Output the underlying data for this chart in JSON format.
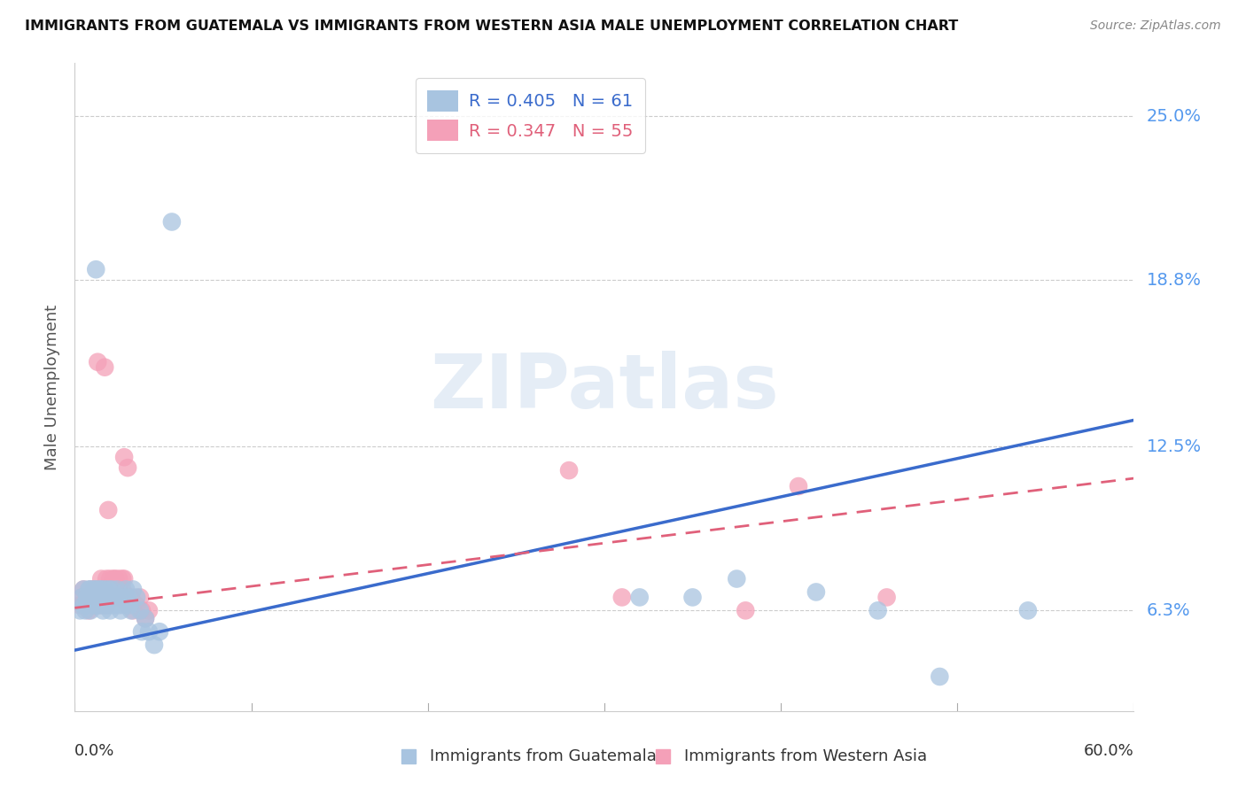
{
  "title": "IMMIGRANTS FROM GUATEMALA VS IMMIGRANTS FROM WESTERN ASIA MALE UNEMPLOYMENT CORRELATION CHART",
  "source": "Source: ZipAtlas.com",
  "ylabel": "Male Unemployment",
  "ytick_labels": [
    "6.3%",
    "12.5%",
    "18.8%",
    "25.0%"
  ],
  "ytick_values": [
    0.063,
    0.125,
    0.188,
    0.25
  ],
  "xlim": [
    0.0,
    0.6
  ],
  "ylim": [
    0.025,
    0.27
  ],
  "watermark": "ZIPatlas",
  "guatemala": {
    "R": 0.405,
    "N": 61,
    "scatter_color": "#a8c4e0",
    "line_color": "#3a6bcc",
    "trend_x": [
      0.0,
      0.6
    ],
    "trend_y": [
      0.048,
      0.135
    ],
    "points": [
      [
        0.003,
        0.063
      ],
      [
        0.004,
        0.068
      ],
      [
        0.005,
        0.065
      ],
      [
        0.005,
        0.071
      ],
      [
        0.006,
        0.063
      ],
      [
        0.007,
        0.068
      ],
      [
        0.007,
        0.065
      ],
      [
        0.008,
        0.071
      ],
      [
        0.008,
        0.068
      ],
      [
        0.009,
        0.063
      ],
      [
        0.009,
        0.071
      ],
      [
        0.01,
        0.068
      ],
      [
        0.01,
        0.065
      ],
      [
        0.011,
        0.071
      ],
      [
        0.011,
        0.068
      ],
      [
        0.012,
        0.065
      ],
      [
        0.012,
        0.071
      ],
      [
        0.013,
        0.068
      ],
      [
        0.013,
        0.065
      ],
      [
        0.014,
        0.071
      ],
      [
        0.014,
        0.068
      ],
      [
        0.015,
        0.065
      ],
      [
        0.015,
        0.071
      ],
      [
        0.016,
        0.068
      ],
      [
        0.016,
        0.063
      ],
      [
        0.017,
        0.071
      ],
      [
        0.017,
        0.065
      ],
      [
        0.018,
        0.068
      ],
      [
        0.019,
        0.065
      ],
      [
        0.019,
        0.071
      ],
      [
        0.02,
        0.068
      ],
      [
        0.02,
        0.063
      ],
      [
        0.021,
        0.071
      ],
      [
        0.022,
        0.065
      ],
      [
        0.023,
        0.068
      ],
      [
        0.024,
        0.071
      ],
      [
        0.025,
        0.065
      ],
      [
        0.026,
        0.063
      ],
      [
        0.027,
        0.068
      ],
      [
        0.028,
        0.065
      ],
      [
        0.029,
        0.071
      ],
      [
        0.03,
        0.068
      ],
      [
        0.031,
        0.065
      ],
      [
        0.032,
        0.063
      ],
      [
        0.033,
        0.071
      ],
      [
        0.035,
        0.068
      ],
      [
        0.037,
        0.063
      ],
      [
        0.038,
        0.055
      ],
      [
        0.04,
        0.06
      ],
      [
        0.042,
        0.055
      ],
      [
        0.045,
        0.05
      ],
      [
        0.048,
        0.055
      ],
      [
        0.012,
        0.192
      ],
      [
        0.055,
        0.21
      ],
      [
        0.32,
        0.068
      ],
      [
        0.35,
        0.068
      ],
      [
        0.375,
        0.075
      ],
      [
        0.42,
        0.07
      ],
      [
        0.455,
        0.063
      ],
      [
        0.49,
        0.038
      ],
      [
        0.54,
        0.063
      ]
    ]
  },
  "western_asia": {
    "R": 0.347,
    "N": 55,
    "scatter_color": "#f4a0b8",
    "line_color": "#e0607a",
    "trend_x": [
      0.0,
      0.6
    ],
    "trend_y": [
      0.064,
      0.113
    ],
    "points": [
      [
        0.003,
        0.065
      ],
      [
        0.004,
        0.068
      ],
      [
        0.005,
        0.071
      ],
      [
        0.006,
        0.065
      ],
      [
        0.007,
        0.068
      ],
      [
        0.008,
        0.063
      ],
      [
        0.009,
        0.071
      ],
      [
        0.01,
        0.068
      ],
      [
        0.01,
        0.065
      ],
      [
        0.011,
        0.071
      ],
      [
        0.012,
        0.068
      ],
      [
        0.013,
        0.065
      ],
      [
        0.013,
        0.071
      ],
      [
        0.014,
        0.068
      ],
      [
        0.015,
        0.075
      ],
      [
        0.015,
        0.068
      ],
      [
        0.016,
        0.065
      ],
      [
        0.017,
        0.071
      ],
      [
        0.017,
        0.068
      ],
      [
        0.018,
        0.075
      ],
      [
        0.018,
        0.065
      ],
      [
        0.019,
        0.071
      ],
      [
        0.02,
        0.068
      ],
      [
        0.02,
        0.075
      ],
      [
        0.021,
        0.071
      ],
      [
        0.022,
        0.075
      ],
      [
        0.022,
        0.068
      ],
      [
        0.023,
        0.075
      ],
      [
        0.023,
        0.071
      ],
      [
        0.024,
        0.068
      ],
      [
        0.025,
        0.075
      ],
      [
        0.025,
        0.071
      ],
      [
        0.026,
        0.068
      ],
      [
        0.027,
        0.075
      ],
      [
        0.027,
        0.071
      ],
      [
        0.013,
        0.157
      ],
      [
        0.017,
        0.155
      ],
      [
        0.028,
        0.121
      ],
      [
        0.03,
        0.117
      ],
      [
        0.019,
        0.101
      ],
      [
        0.028,
        0.075
      ],
      [
        0.029,
        0.068
      ],
      [
        0.03,
        0.065
      ],
      [
        0.032,
        0.068
      ],
      [
        0.033,
        0.063
      ],
      [
        0.035,
        0.065
      ],
      [
        0.037,
        0.068
      ],
      [
        0.038,
        0.063
      ],
      [
        0.04,
        0.06
      ],
      [
        0.042,
        0.063
      ],
      [
        0.28,
        0.116
      ],
      [
        0.31,
        0.068
      ],
      [
        0.38,
        0.063
      ],
      [
        0.41,
        0.11
      ],
      [
        0.46,
        0.068
      ]
    ]
  }
}
